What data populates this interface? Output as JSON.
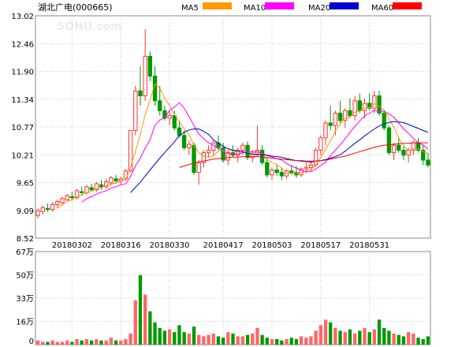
{
  "header": {
    "title": "湖北广电(000665)",
    "legend": [
      {
        "label": "MA5",
        "color": "#ff9900"
      },
      {
        "label": "MA10",
        "color": "#ff00ff"
      },
      {
        "label": "MA20",
        "color": "#0000cc"
      },
      {
        "label": "MA60",
        "color": "#ff0000"
      }
    ]
  },
  "watermark": "SOHU.com",
  "colors": {
    "up": "#ff3333",
    "down": "#009900",
    "volume_up": "#ff6666",
    "volume_down": "#009900",
    "grid": "#c8c8c8",
    "axis_text": "#000000"
  },
  "chart_data": [
    {
      "type": "candlestick",
      "yticks": [
        "13.02",
        "12.46",
        "11.90",
        "11.34",
        "10.77",
        "10.21",
        "9.65",
        "9.09",
        "8.52"
      ],
      "ylim": [
        8.52,
        13.02
      ],
      "xticks": [
        "20180302",
        "20180316",
        "20180330",
        "20180417",
        "20180503",
        "20180517",
        "20180531"
      ],
      "grid": true,
      "ohlc": [
        [
          8.98,
          9.12,
          8.92,
          9.08
        ],
        [
          9.06,
          9.18,
          9.0,
          9.14
        ],
        [
          9.12,
          9.22,
          9.05,
          9.1
        ],
        [
          9.1,
          9.25,
          9.06,
          9.2
        ],
        [
          9.2,
          9.3,
          9.12,
          9.26
        ],
        [
          9.24,
          9.36,
          9.18,
          9.32
        ],
        [
          9.3,
          9.42,
          9.26,
          9.38
        ],
        [
          9.36,
          9.46,
          9.28,
          9.34
        ],
        [
          9.34,
          9.52,
          9.3,
          9.48
        ],
        [
          9.46,
          9.56,
          9.38,
          9.44
        ],
        [
          9.44,
          9.6,
          9.4,
          9.56
        ],
        [
          9.54,
          9.62,
          9.46,
          9.5
        ],
        [
          9.5,
          9.66,
          9.46,
          9.62
        ],
        [
          9.6,
          9.7,
          9.5,
          9.56
        ],
        [
          9.56,
          9.72,
          9.52,
          9.66
        ],
        [
          9.64,
          9.78,
          9.58,
          9.74
        ],
        [
          9.72,
          9.8,
          9.62,
          9.68
        ],
        [
          9.68,
          9.76,
          9.6,
          9.72
        ],
        [
          9.72,
          9.92,
          9.68,
          9.88
        ],
        [
          9.88,
          10.7,
          9.86,
          10.7
        ],
        [
          10.7,
          11.6,
          10.6,
          11.5
        ],
        [
          11.5,
          12.0,
          11.2,
          11.4
        ],
        [
          11.4,
          12.75,
          11.3,
          12.2
        ],
        [
          12.2,
          12.3,
          11.7,
          11.8
        ],
        [
          11.8,
          12.0,
          11.2,
          11.3
        ],
        [
          11.3,
          11.6,
          11.0,
          11.1
        ],
        [
          11.1,
          11.2,
          10.9,
          10.95
        ],
        [
          10.95,
          11.1,
          10.8,
          11.0
        ],
        [
          11.0,
          11.1,
          10.7,
          10.75
        ],
        [
          10.75,
          10.9,
          10.55,
          10.6
        ],
        [
          10.6,
          10.7,
          10.3,
          10.35
        ],
        [
          10.35,
          10.5,
          10.2,
          10.42
        ],
        [
          10.4,
          10.45,
          9.8,
          9.85
        ],
        [
          9.85,
          10.1,
          9.6,
          10.05
        ],
        [
          10.05,
          10.3,
          9.95,
          10.25
        ],
        [
          10.25,
          10.4,
          10.15,
          10.3
        ],
        [
          10.3,
          10.5,
          10.2,
          10.45
        ],
        [
          10.45,
          10.6,
          10.3,
          10.35
        ],
        [
          10.35,
          10.45,
          10.05,
          10.1
        ],
        [
          10.1,
          10.3,
          10.0,
          10.25
        ],
        [
          10.25,
          10.4,
          10.15,
          10.2
        ],
        [
          10.2,
          10.35,
          10.05,
          10.3
        ],
        [
          10.3,
          10.45,
          10.2,
          10.4
        ],
        [
          10.4,
          10.48,
          10.1,
          10.15
        ],
        [
          10.15,
          10.3,
          10.05,
          10.22
        ],
        [
          10.22,
          10.8,
          10.18,
          10.3
        ],
        [
          10.3,
          10.4,
          10.0,
          10.05
        ],
        [
          10.05,
          10.15,
          9.75,
          9.8
        ],
        [
          9.8,
          9.95,
          9.7,
          9.9
        ],
        [
          9.9,
          10.0,
          9.78,
          9.85
        ],
        [
          9.85,
          9.95,
          9.7,
          9.78
        ],
        [
          9.78,
          9.92,
          9.72,
          9.88
        ],
        [
          9.88,
          10.0,
          9.8,
          9.85
        ],
        [
          9.85,
          9.98,
          9.74,
          9.8
        ],
        [
          9.8,
          9.95,
          9.76,
          9.92
        ],
        [
          9.92,
          10.05,
          9.84,
          9.95
        ],
        [
          9.95,
          10.08,
          9.88,
          10.0
        ],
        [
          10.0,
          10.35,
          9.96,
          10.3
        ],
        [
          10.3,
          10.6,
          10.2,
          10.55
        ],
        [
          10.55,
          10.9,
          10.4,
          10.85
        ],
        [
          10.85,
          11.2,
          10.7,
          10.8
        ],
        [
          10.8,
          11.1,
          10.6,
          11.05
        ],
        [
          11.05,
          11.3,
          10.85,
          10.9
        ],
        [
          10.9,
          11.15,
          10.75,
          11.1
        ],
        [
          11.1,
          11.35,
          10.95,
          11.0
        ],
        [
          11.0,
          11.4,
          10.9,
          11.3
        ],
        [
          11.3,
          11.45,
          11.05,
          11.1
        ],
        [
          11.1,
          11.35,
          10.95,
          11.25
        ],
        [
          11.25,
          11.45,
          11.1,
          11.15
        ],
        [
          11.15,
          11.5,
          11.05,
          11.4
        ],
        [
          11.4,
          11.5,
          11.0,
          11.05
        ],
        [
          11.05,
          11.1,
          10.7,
          10.75
        ],
        [
          10.75,
          10.8,
          10.2,
          10.25
        ],
        [
          10.25,
          10.45,
          10.1,
          10.4
        ],
        [
          10.4,
          10.55,
          10.25,
          10.3
        ],
        [
          10.3,
          10.4,
          10.1,
          10.2
        ],
        [
          10.2,
          10.35,
          10.05,
          10.3
        ],
        [
          10.3,
          10.5,
          10.2,
          10.45
        ],
        [
          10.45,
          10.55,
          10.25,
          10.3
        ],
        [
          10.3,
          10.4,
          10.0,
          10.1
        ],
        [
          10.1,
          10.25,
          9.95,
          10.0
        ]
      ],
      "series": [
        {
          "name": "MA5",
          "values": [
            null,
            null,
            null,
            null,
            9.12,
            9.2,
            9.26,
            9.3,
            9.36,
            9.39,
            9.44,
            9.47,
            9.52,
            9.54,
            9.58,
            9.62,
            9.63,
            9.67,
            9.7,
            9.95,
            10.27,
            10.62,
            11.02,
            11.32,
            11.64,
            11.56,
            11.35,
            11.21,
            11.02,
            10.88,
            10.73,
            10.62,
            10.4,
            10.25,
            10.18,
            10.17,
            10.18,
            10.28,
            10.29,
            10.29,
            10.3,
            10.24,
            10.25,
            10.26,
            10.25,
            10.25,
            10.24,
            10.11,
            10.05,
            10.01,
            9.94,
            9.83,
            9.83,
            9.83,
            9.84,
            9.88,
            9.91,
            10.0,
            10.15,
            10.32,
            10.49,
            10.69,
            10.83,
            10.94,
            10.97,
            11.07,
            11.09,
            11.15,
            11.16,
            11.24,
            11.19,
            11.11,
            10.93,
            10.77,
            10.55,
            10.38,
            10.29,
            10.33,
            10.33,
            10.27,
            10.23
          ]
        },
        {
          "name": "MA10",
          "values": [
            null,
            null,
            null,
            null,
            null,
            null,
            null,
            null,
            null,
            9.25,
            9.32,
            9.36,
            9.41,
            9.45,
            9.48,
            9.53,
            9.56,
            9.6,
            9.62,
            9.77,
            9.98,
            10.14,
            10.34,
            10.51,
            10.8,
            10.91,
            10.95,
            11.11,
            11.17,
            11.26,
            11.15,
            10.98,
            10.8,
            10.63,
            10.53,
            10.45,
            10.4,
            10.34,
            10.27,
            10.23,
            10.23,
            10.21,
            10.25,
            10.27,
            10.27,
            10.27,
            10.24,
            10.19,
            10.16,
            10.13,
            10.1,
            10.03,
            9.98,
            9.94,
            9.89,
            9.86,
            9.87,
            9.92,
            9.99,
            10.06,
            10.19,
            10.3,
            10.41,
            10.53,
            10.66,
            10.78,
            10.89,
            10.99,
            11.05,
            11.11,
            11.08,
            11.09,
            11.03,
            10.97,
            10.85,
            10.73,
            10.64,
            10.54,
            10.45,
            10.41,
            10.32
          ]
        },
        {
          "name": "MA20",
          "values": [
            null,
            null,
            null,
            null,
            null,
            null,
            null,
            null,
            null,
            null,
            null,
            null,
            null,
            null,
            null,
            null,
            null,
            null,
            null,
            9.44,
            9.55,
            9.65,
            9.78,
            9.9,
            10.02,
            10.14,
            10.25,
            10.36,
            10.47,
            10.6,
            10.66,
            10.71,
            10.73,
            10.73,
            10.68,
            10.62,
            10.51,
            10.44,
            10.38,
            10.33,
            10.3,
            10.28,
            10.27,
            10.24,
            10.22,
            10.21,
            10.21,
            10.2,
            10.18,
            10.17,
            10.16,
            10.13,
            10.11,
            10.09,
            10.08,
            10.07,
            10.06,
            10.08,
            10.09,
            10.11,
            10.14,
            10.17,
            10.21,
            10.28,
            10.36,
            10.44,
            10.51,
            10.59,
            10.66,
            10.73,
            10.79,
            10.83,
            10.86,
            10.88,
            10.87,
            10.86,
            10.82,
            10.78,
            10.74,
            10.7,
            10.66
          ]
        },
        {
          "name": "MA60",
          "values": [
            null,
            null,
            null,
            null,
            null,
            null,
            null,
            null,
            null,
            null,
            null,
            null,
            null,
            null,
            null,
            null,
            null,
            null,
            null,
            null,
            null,
            null,
            null,
            null,
            null,
            null,
            null,
            null,
            null,
            9.95,
            9.98,
            10.01,
            10.04,
            10.06,
            10.08,
            10.1,
            10.12,
            10.13,
            10.14,
            10.15,
            10.16,
            10.16,
            10.17,
            10.17,
            10.17,
            10.17,
            10.16,
            10.15,
            10.14,
            10.13,
            10.12,
            10.11,
            10.1,
            10.09,
            10.09,
            10.08,
            10.08,
            10.08,
            10.09,
            10.1,
            10.12,
            10.14,
            10.16,
            10.18,
            10.21,
            10.24,
            10.27,
            10.3,
            10.33,
            10.36,
            10.38,
            10.4,
            10.41,
            10.42,
            10.43,
            10.44,
            10.44,
            10.45,
            10.45,
            10.45,
            10.45
          ]
        }
      ]
    },
    {
      "type": "bar",
      "yticks": [
        "67万",
        "50万",
        "33万",
        "16万",
        "0"
      ],
      "ylim": [
        0,
        67
      ],
      "grid": true,
      "volume": [
        3,
        2,
        2,
        3,
        2,
        2,
        3,
        2,
        4,
        3,
        4,
        3,
        4,
        3,
        3,
        5,
        3,
        3,
        4,
        8,
        32,
        50,
        36,
        24,
        16,
        12,
        10,
        11,
        9,
        14,
        9,
        8,
        13,
        7,
        6,
        7,
        8,
        6,
        5,
        9,
        8,
        6,
        6,
        7,
        8,
        12,
        7,
        5,
        4,
        4,
        3,
        4,
        5,
        4,
        6,
        5,
        6,
        10,
        14,
        18,
        16,
        12,
        10,
        9,
        11,
        8,
        10,
        12,
        9,
        11,
        18,
        12,
        10,
        8,
        7,
        6,
        9,
        8,
        5,
        4,
        6
      ]
    }
  ]
}
